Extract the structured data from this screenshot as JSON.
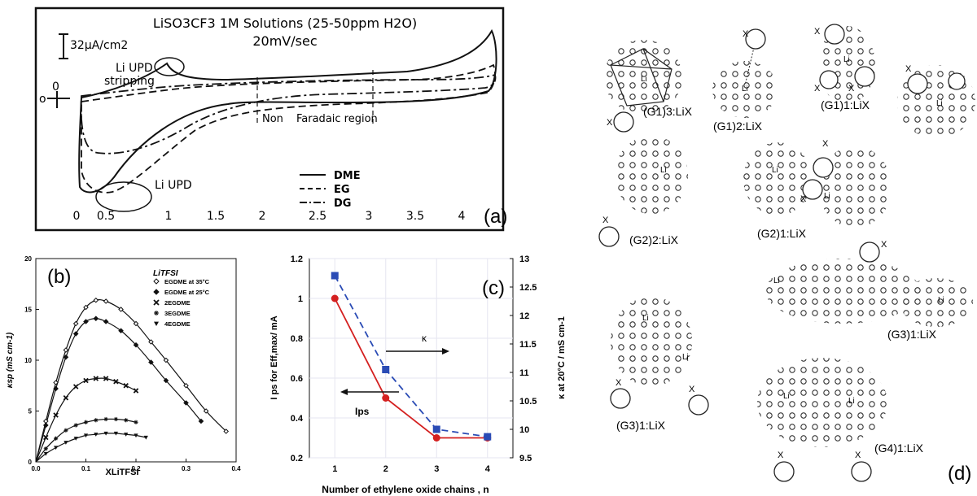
{
  "panel_a": {
    "title_line1": "LiSO3CF3 1M Solutions (25-50ppm H2O)",
    "title_line2": "20mV/sec",
    "scale_label": "32μA/cm2",
    "zero_label": "0",
    "zero_label_left": "o",
    "upd_stripping_label1": "Li UPD",
    "upd_stripping_label2": "stripping",
    "upd_label": "Li UPD",
    "non_label": "Non",
    "faradaic_label": "Faradaic region",
    "panel_tag": "(a)",
    "legend": [
      "DME",
      "EG",
      "DG"
    ],
    "x_ticks": [
      "0",
      "0.5",
      "1",
      "1.5",
      "2",
      "2.5",
      "3",
      "3.5",
      "4"
    ]
  },
  "chart_data": [
    {
      "panel": "b",
      "type": "scatter",
      "title": "LiTFSI",
      "xlabel": "XLiTFSI",
      "ylabel": "κsp (mS cm-1)",
      "xlim": [
        0.0,
        0.4
      ],
      "ylim": [
        0,
        20
      ],
      "x_ticks": [
        "0.0",
        "0.1",
        "0.2",
        "0.3",
        "0.4"
      ],
      "y_ticks": [
        "0",
        "5",
        "10",
        "15",
        "20"
      ],
      "panel_tag": "(b)",
      "series": [
        {
          "name": "EGDME at 35°C",
          "marker": "open-diamond",
          "x": [
            0.02,
            0.04,
            0.06,
            0.08,
            0.1,
            0.12,
            0.14,
            0.17,
            0.2,
            0.23,
            0.26,
            0.3,
            0.34,
            0.38
          ],
          "y": [
            4,
            7.8,
            11,
            13.6,
            15.2,
            15.9,
            15.8,
            15.0,
            13.6,
            11.8,
            10.0,
            7.5,
            5.0,
            3.0
          ]
        },
        {
          "name": "EGDME at 25°C",
          "marker": "filled-diamond",
          "x": [
            0.02,
            0.04,
            0.06,
            0.08,
            0.1,
            0.12,
            0.14,
            0.17,
            0.2,
            0.23,
            0.26,
            0.3,
            0.33
          ],
          "y": [
            3.6,
            7.2,
            10.3,
            12.6,
            13.8,
            14.1,
            13.8,
            12.9,
            11.5,
            9.8,
            8.0,
            5.8,
            4.0
          ]
        },
        {
          "name": "2EGDME",
          "marker": "x",
          "x": [
            0.02,
            0.04,
            0.06,
            0.08,
            0.1,
            0.12,
            0.14,
            0.16,
            0.18,
            0.2
          ],
          "y": [
            2.4,
            4.6,
            6.3,
            7.4,
            8.0,
            8.2,
            8.2,
            7.9,
            7.5,
            7.0
          ]
        },
        {
          "name": "3EGDME",
          "marker": "asterisk",
          "x": [
            0.02,
            0.04,
            0.06,
            0.08,
            0.1,
            0.12,
            0.14,
            0.16,
            0.18,
            0.2
          ],
          "y": [
            1.3,
            2.3,
            3.1,
            3.6,
            3.9,
            4.1,
            4.2,
            4.2,
            4.1,
            3.9
          ]
        },
        {
          "name": "4EGDME",
          "marker": "filled-triangle-down",
          "x": [
            0.02,
            0.04,
            0.06,
            0.08,
            0.1,
            0.12,
            0.14,
            0.16,
            0.18,
            0.2,
            0.22
          ],
          "y": [
            0.8,
            1.4,
            1.9,
            2.3,
            2.6,
            2.7,
            2.8,
            2.8,
            2.7,
            2.6,
            2.4
          ]
        }
      ]
    },
    {
      "panel": "c",
      "type": "line",
      "xlabel": "Number of ethylene oxide chains , n",
      "ylabel_left": "I ps for Eff,max/ mA",
      "ylabel_right": "κ at 20°C / mS cm-1",
      "x": [
        1,
        2,
        3,
        4
      ],
      "xlim": [
        0.5,
        4.5
      ],
      "ylim_left": [
        0.2,
        1.2
      ],
      "ylim_right": [
        9.5,
        13
      ],
      "x_ticks": [
        "1",
        "2",
        "3",
        "4"
      ],
      "y_ticks_left": [
        "0.2",
        "0.4",
        "0.6",
        "0.8",
        "1",
        "1.2"
      ],
      "y_ticks_right": [
        "9.5",
        "10",
        "10.5",
        "11",
        "11.5",
        "12",
        "12.5",
        "13"
      ],
      "panel_tag": "(c)",
      "annotations": {
        "kappa": "κ",
        "ips": "Ips"
      },
      "series": [
        {
          "axis": "left",
          "color": "#d42020",
          "marker": "circle",
          "values": [
            1.0,
            0.5,
            0.3,
            0.3
          ]
        },
        {
          "axis": "right",
          "color": "#2a4bb5",
          "marker": "square",
          "dashed": true,
          "values": [
            12.7,
            11.05,
            10.0,
            9.87
          ]
        }
      ]
    }
  ],
  "panel_d": {
    "panel_tag": "(d)",
    "labels": {
      "g1_3": "(G1)3:LiX",
      "g1_2": "(G1)2:LiX",
      "g1_1": "(G1)1:LiX",
      "g2_2": "(G2)2:LiX",
      "g2_1": "(G2)1:LiX",
      "g3_1a": "(G3)1:LiX",
      "g3_1b": "(G3)1:LiX",
      "g4_1": "(G4)1:LiX"
    },
    "atom_li": "Li",
    "atom_x": "X"
  }
}
